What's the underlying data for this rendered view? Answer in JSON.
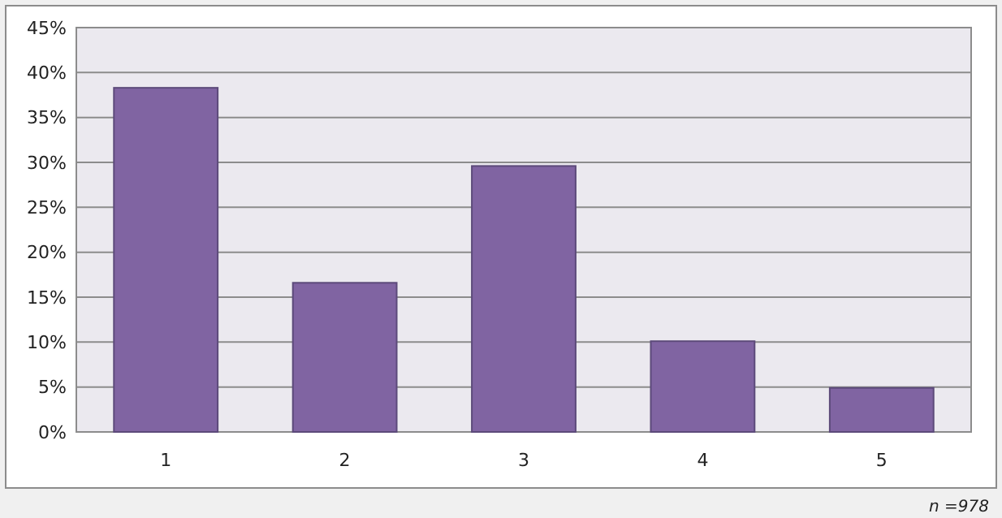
{
  "chart_data": {
    "type": "bar",
    "categories": [
      "1",
      "2",
      "3",
      "4",
      "5"
    ],
    "values": [
      38.3,
      16.6,
      29.6,
      10.1,
      4.9
    ],
    "color": "#8064a2",
    "ylim": [
      0,
      45
    ],
    "yticks": [
      {
        "value": 0,
        "label": "0%"
      },
      {
        "value": 5,
        "label": "5%"
      },
      {
        "value": 10,
        "label": "10%"
      },
      {
        "value": 15,
        "label": "15%"
      },
      {
        "value": 20,
        "label": "20%"
      },
      {
        "value": 25,
        "label": "25%"
      },
      {
        "value": 30,
        "label": "30%"
      },
      {
        "value": 35,
        "label": "35%"
      },
      {
        "value": 40,
        "label": "40%"
      },
      {
        "value": 45,
        "label": "45%"
      }
    ],
    "grid": "y",
    "annotations": [
      "n =978"
    ]
  }
}
